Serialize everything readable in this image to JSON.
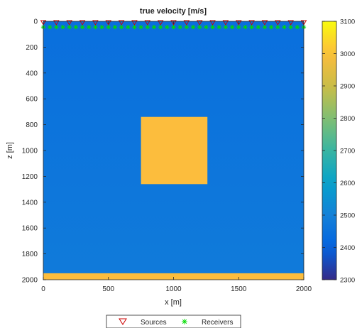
{
  "chart_data": {
    "type": "heatmap",
    "title": "true velocity [m/s]",
    "xlabel": "x [m]",
    "ylabel": "z [m]",
    "xlim": [
      0,
      2000
    ],
    "ylim": [
      0,
      2000
    ],
    "y_reversed": true,
    "xticks": [
      0,
      500,
      1000,
      1500,
      2000
    ],
    "yticks": [
      0,
      200,
      400,
      600,
      800,
      1000,
      1200,
      1400,
      1600,
      1800,
      2000
    ],
    "colorbar": {
      "range": [
        2300,
        3100
      ],
      "ticks": [
        2300,
        2400,
        2500,
        2600,
        2700,
        2800,
        2900,
        3000,
        3100
      ],
      "colormap": "parula"
    },
    "background_velocity": {
      "top": 2440,
      "bottom": 2480
    },
    "regions": [
      {
        "name": "square anomaly",
        "x": [
          750,
          1260
        ],
        "z": [
          740,
          1260
        ],
        "velocity": 3000
      },
      {
        "name": "bottom layer",
        "x": [
          0,
          2000
        ],
        "z": [
          1950,
          2000
        ],
        "velocity": 3000
      }
    ],
    "sources": {
      "z": 10,
      "x_start": 0,
      "x_end": 2000,
      "count": 21,
      "color": "#cc0000",
      "marker": "triangle-down"
    },
    "receivers": {
      "z": 45,
      "x_start": 0,
      "x_end": 2000,
      "count": 41,
      "color": "#00dd00",
      "marker": "asterisk"
    },
    "legend": {
      "placement": "bottom",
      "entries": [
        {
          "label": "Sources",
          "marker": "triangle-down",
          "color": "#cc0000"
        },
        {
          "label": "Receivers",
          "marker": "asterisk",
          "color": "#00dd00"
        }
      ]
    }
  }
}
